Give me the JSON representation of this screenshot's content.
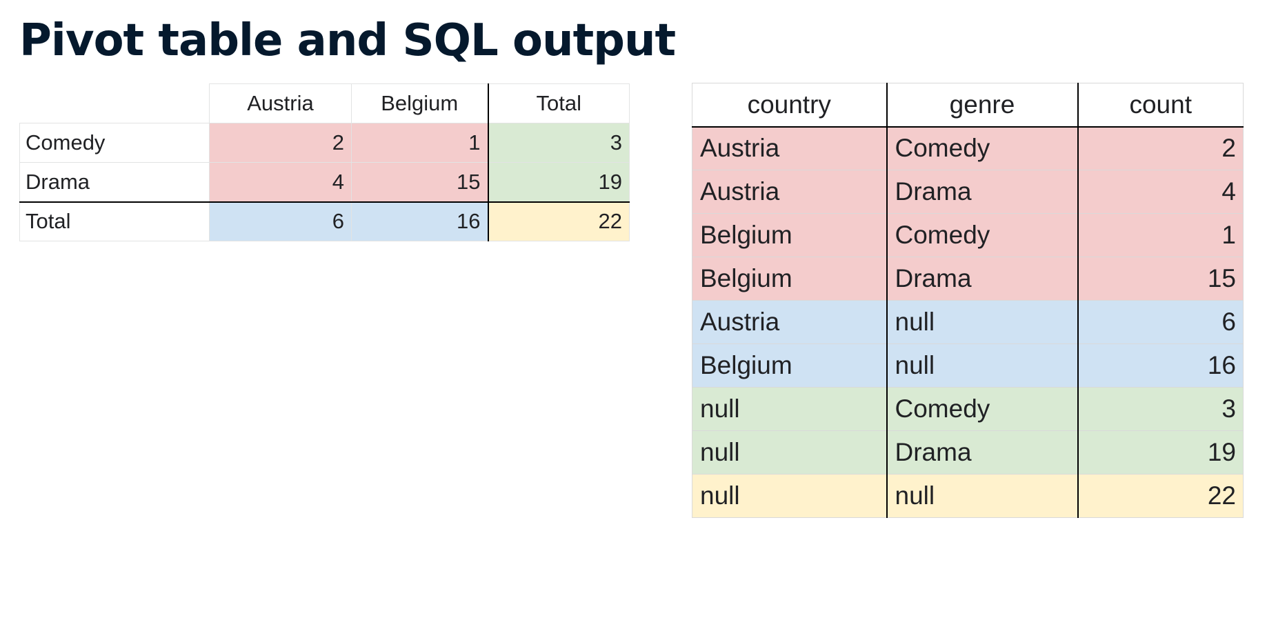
{
  "title": "Pivot table and SQL output",
  "pivot": {
    "columns": [
      "Austria",
      "Belgium",
      "Total"
    ],
    "rows": [
      {
        "label": "Comedy",
        "values": [
          "2",
          "1",
          "3"
        ]
      },
      {
        "label": "Drama",
        "values": [
          "4",
          "15",
          "19"
        ]
      },
      {
        "label": "Total",
        "values": [
          "6",
          "16",
          "22"
        ]
      }
    ]
  },
  "sql": {
    "columns": [
      "country",
      "genre",
      "count"
    ],
    "rows": [
      {
        "country": "Austria",
        "genre": "Comedy",
        "count": "2",
        "color": "#f4cccc"
      },
      {
        "country": "Austria",
        "genre": "Drama",
        "count": "4",
        "color": "#f4cccc"
      },
      {
        "country": "Belgium",
        "genre": "Comedy",
        "count": "1",
        "color": "#f4cccc"
      },
      {
        "country": "Belgium",
        "genre": "Drama",
        "count": "15",
        "color": "#f4cccc"
      },
      {
        "country": "Austria",
        "genre": "null",
        "count": "6",
        "color": "#cfe2f3"
      },
      {
        "country": "Belgium",
        "genre": "null",
        "count": "16",
        "color": "#cfe2f3"
      },
      {
        "country": "null",
        "genre": "Comedy",
        "count": "3",
        "color": "#d9ead3"
      },
      {
        "country": "null",
        "genre": "Drama",
        "count": "19",
        "color": "#d9ead3"
      },
      {
        "country": "null",
        "genre": "null",
        "count": "22",
        "color": "#fff2cc"
      }
    ]
  },
  "colors": {
    "group_detail": "#f4cccc",
    "country_subtotal": "#cfe2f3",
    "genre_subtotal": "#d9ead3",
    "grand_total": "#fff2cc",
    "title": "#05192d"
  }
}
